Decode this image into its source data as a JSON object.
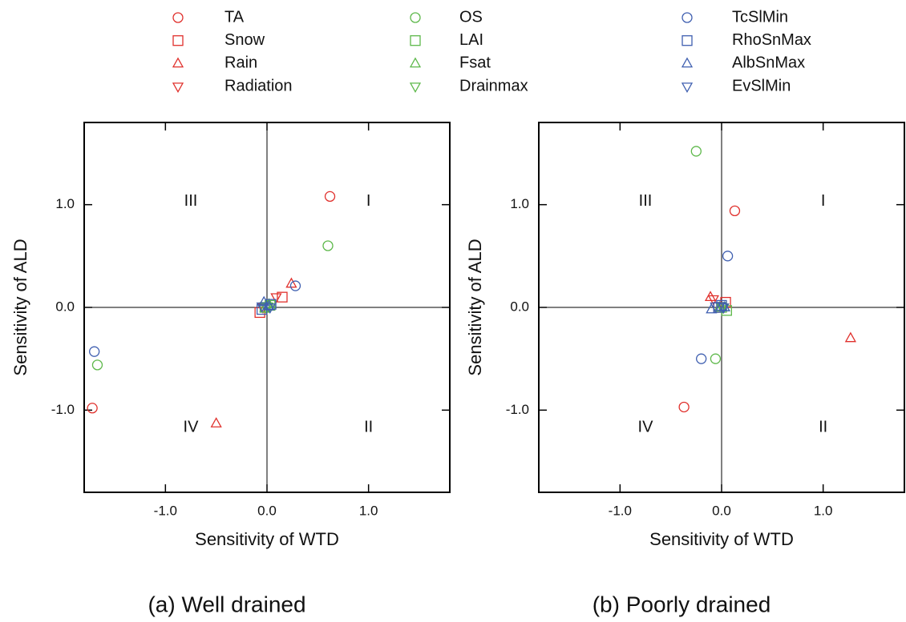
{
  "chart_data": [
    {
      "type": "scatter",
      "title": "(a) Well drained",
      "x_label": "Sensitivity of WTD",
      "y_label": "Sensitivity of ALD",
      "xlim": [
        -1.8,
        1.8
      ],
      "ylim": [
        -1.8,
        1.8
      ],
      "xticks": [
        {
          "value": -1,
          "label": "-1.0"
        },
        {
          "value": 0,
          "label": "0.0"
        },
        {
          "value": 1,
          "label": "1.0"
        }
      ],
      "yticks": [
        {
          "value": -1,
          "label": "-1.0"
        },
        {
          "value": 0,
          "label": "0.0"
        },
        {
          "value": 1,
          "label": "1.0"
        }
      ],
      "zero_lines": true,
      "annotations": [
        {
          "text": "I",
          "x": 1.0,
          "y": 1.03
        },
        {
          "text": "II",
          "x": 1.0,
          "y": -1.17
        },
        {
          "text": "III",
          "x": -0.75,
          "y": 1.03
        },
        {
          "text": "IV",
          "x": -0.75,
          "y": -1.17
        }
      ],
      "series": [
        {
          "name": "TA",
          "color": "#e0302c",
          "marker": "circle",
          "x": [
            0.62,
            -1.72
          ],
          "values": [
            1.08,
            -0.98
          ]
        },
        {
          "name": "Snow",
          "color": "#e0302c",
          "marker": "square",
          "x": [
            0.15,
            -0.07
          ],
          "values": [
            0.1,
            -0.05
          ]
        },
        {
          "name": "Rain",
          "color": "#e0302c",
          "marker": "triangle-up",
          "x": [
            0.24,
            -0.5
          ],
          "values": [
            0.23,
            -1.13
          ]
        },
        {
          "name": "Radiation",
          "color": "#e0302c",
          "marker": "triangle-down",
          "x": [
            0.09,
            -0.04
          ],
          "values": [
            0.1,
            0.0
          ]
        },
        {
          "name": "OS",
          "color": "#5db84a",
          "marker": "circle",
          "x": [
            0.6,
            -1.67
          ],
          "values": [
            0.6,
            -0.56
          ]
        },
        {
          "name": "LAI",
          "color": "#5db84a",
          "marker": "square",
          "x": [
            0.03,
            -0.02
          ],
          "values": [
            0.02,
            0.0
          ]
        },
        {
          "name": "Fsat",
          "color": "#5db84a",
          "marker": "triangle-up",
          "x": [
            0.02,
            -0.02
          ],
          "values": [
            0.03,
            -0.01
          ]
        },
        {
          "name": "Drainmax",
          "color": "#5db84a",
          "marker": "triangle-down",
          "x": [
            0.01,
            -0.01
          ],
          "values": [
            0.01,
            0.0
          ]
        },
        {
          "name": "TcSlMin",
          "color": "#3f5fb0",
          "marker": "circle",
          "x": [
            0.28,
            -1.7
          ],
          "values": [
            0.21,
            -0.43
          ]
        },
        {
          "name": "RhoSnMax",
          "color": "#3f5fb0",
          "marker": "square",
          "x": [
            0.04,
            -0.05
          ],
          "values": [
            0.03,
            -0.02
          ]
        },
        {
          "name": "AlbSnMax",
          "color": "#3f5fb0",
          "marker": "triangle-up",
          "x": [
            -0.03,
            0.02
          ],
          "values": [
            0.05,
            0.01
          ]
        },
        {
          "name": "EvSlMin",
          "color": "#3f5fb0",
          "marker": "triangle-down",
          "x": [
            -0.05,
            0.03
          ],
          "values": [
            0.01,
            0.0
          ]
        }
      ]
    },
    {
      "type": "scatter",
      "title": "(b) Poorly drained",
      "x_label": "Sensitivity of WTD",
      "y_label": "Sensitivity of ALD",
      "xlim": [
        -1.8,
        1.8
      ],
      "ylim": [
        -1.8,
        1.8
      ],
      "xticks": [
        {
          "value": -1,
          "label": "-1.0"
        },
        {
          "value": 0,
          "label": "0.0"
        },
        {
          "value": 1,
          "label": "1.0"
        }
      ],
      "yticks": [
        {
          "value": -1,
          "label": "-1.0"
        },
        {
          "value": 0,
          "label": "0.0"
        },
        {
          "value": 1,
          "label": "1.0"
        }
      ],
      "zero_lines": true,
      "annotations": [
        {
          "text": "I",
          "x": 1.0,
          "y": 1.03
        },
        {
          "text": "II",
          "x": 1.0,
          "y": -1.17
        },
        {
          "text": "III",
          "x": -0.75,
          "y": 1.03
        },
        {
          "text": "IV",
          "x": -0.75,
          "y": -1.17
        }
      ],
      "series": [
        {
          "color": "#e0302c",
          "marker": "circle",
          "x": [
            0.13,
            -0.37
          ],
          "values": [
            0.94,
            -0.97
          ]
        },
        {
          "color": "#e0302c",
          "marker": "square",
          "x": [
            0.04,
            -0.03
          ],
          "values": [
            0.05,
            0.0
          ]
        },
        {
          "color": "#e0302c",
          "marker": "triangle-up",
          "x": [
            1.27,
            -0.11
          ],
          "values": [
            -0.3,
            0.1
          ]
        },
        {
          "color": "#e0302c",
          "marker": "triangle-down",
          "x": [
            -0.08,
            0.02
          ],
          "values": [
            0.08,
            0.0
          ]
        },
        {
          "color": "#5db84a",
          "marker": "circle",
          "x": [
            -0.25,
            -0.06
          ],
          "values": [
            1.52,
            -0.5
          ]
        },
        {
          "color": "#5db84a",
          "marker": "square",
          "x": [
            0.05,
            0.0
          ],
          "values": [
            -0.03,
            0.0
          ]
        },
        {
          "color": "#5db84a",
          "marker": "triangle-up",
          "x": [
            0.03,
            -0.02
          ],
          "values": [
            0.0,
            0.0
          ]
        },
        {
          "color": "#5db84a",
          "marker": "triangle-down",
          "x": [
            0.01,
            0.0
          ],
          "values": [
            0.0,
            0.0
          ]
        },
        {
          "color": "#3f5fb0",
          "marker": "circle",
          "x": [
            0.06,
            -0.2
          ],
          "values": [
            0.5,
            -0.5
          ]
        },
        {
          "color": "#3f5fb0",
          "marker": "square",
          "x": [
            0.0,
            -0.03
          ],
          "values": [
            0.02,
            0.0
          ]
        },
        {
          "color": "#3f5fb0",
          "marker": "triangle-up",
          "x": [
            -0.1,
            0.03
          ],
          "values": [
            -0.02,
            0.0
          ]
        },
        {
          "color": "#3f5fb0",
          "marker": "triangle-down",
          "x": [
            -0.06,
            0.02
          ],
          "values": [
            0.01,
            0.0
          ]
        }
      ]
    }
  ]
}
